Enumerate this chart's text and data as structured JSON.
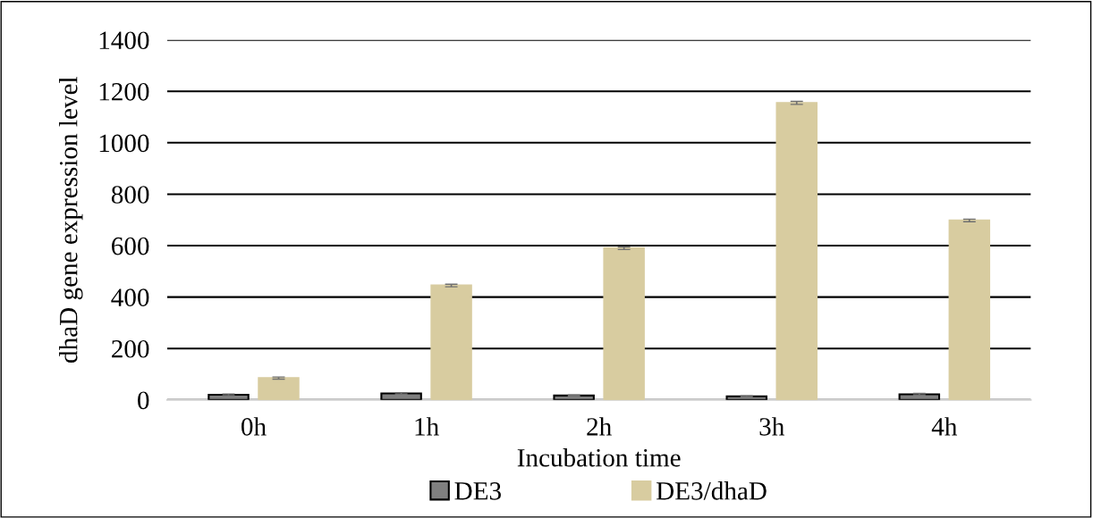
{
  "chart_data": {
    "type": "bar",
    "xlabel": "Incubation time",
    "ylabel": "dhaD gene expression level",
    "categories": [
      "0h",
      "1h",
      "2h",
      "3h",
      "4h"
    ],
    "series": [
      {
        "name": "DE3",
        "color": "#808080",
        "values": [
          20,
          25,
          17,
          14,
          22
        ],
        "errors": [
          3,
          3,
          2,
          2,
          3
        ]
      },
      {
        "name": "DE3/dhaD",
        "color": "#d8cca0",
        "values": [
          85,
          445,
          590,
          1155,
          698
        ],
        "errors": [
          4,
          5,
          5,
          6,
          5
        ]
      }
    ],
    "ylim": [
      0,
      1400
    ],
    "yticks": [
      0,
      200,
      400,
      600,
      800,
      1000,
      1200,
      1400
    ],
    "grid": "y",
    "legend": "bottom"
  }
}
